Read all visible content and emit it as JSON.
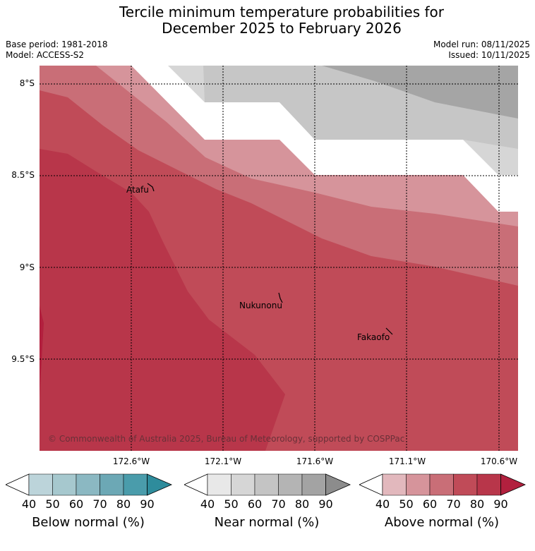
{
  "title": {
    "line1": "Tercile minimum temperature probabilities for",
    "line2": "December 2025 to February 2026"
  },
  "meta": {
    "base_period": "Base period: 1981-2018",
    "model": "Model: ACCESS-S2",
    "model_run": "Model run: 08/11/2025",
    "issued": "Issued: 10/11/2025"
  },
  "map": {
    "lat_labels": [
      "8°S",
      "8.5°S",
      "9°S",
      "9.5°S"
    ],
    "lon_labels": [
      "172.6°W",
      "172.1°W",
      "171.6°W",
      "171.1°W",
      "170.6°W"
    ],
    "places": [
      "Atafu",
      "Nukunonu",
      "Fakaofo"
    ],
    "copyright": "© Commonwealth of Australia 2025, Bureau of Meteorology, supported by COSPPac"
  },
  "legend": {
    "ticks": [
      "40",
      "50",
      "60",
      "70",
      "80",
      "90"
    ],
    "below": {
      "label": "Below normal (%)",
      "colors": [
        "#ffffff",
        "#bcd4da",
        "#a6c8ce",
        "#8bb8c2",
        "#6ca8b5",
        "#4a9cab",
        "#2e8c9c"
      ]
    },
    "near": {
      "label": "Near normal (%)",
      "colors": [
        "#ffffff",
        "#e8e8e8",
        "#d6d6d6",
        "#c4c4c4",
        "#b4b4b4",
        "#a3a3a3",
        "#8c8c8c"
      ]
    },
    "above": {
      "label": "Above normal (%)",
      "colors": [
        "#ffffff",
        "#e2b8bd",
        "#d6949b",
        "#c96e77",
        "#c04b58",
        "#b8364a",
        "#b2203e"
      ]
    }
  }
}
